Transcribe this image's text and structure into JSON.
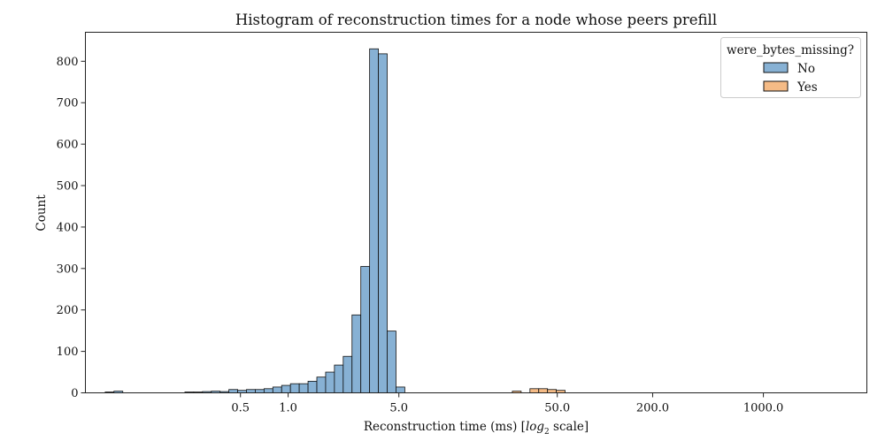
{
  "chart_data": {
    "type": "bar",
    "title": "Histogram of reconstruction times for a node whose peers prefill",
    "xlabel_prefix": "Reconstruction time (ms) [",
    "xlabel_log": "log",
    "xlabel_sub": "2",
    "xlabel_suffix": " scale]",
    "ylabel": "Count",
    "x_scale": "log2",
    "xlim": [
      0.0525,
      4500
    ],
    "ylim": [
      0,
      870
    ],
    "x_ticks": [
      0.5,
      1.0,
      5.0,
      50.0,
      200.0,
      1000.0
    ],
    "x_tick_labels": [
      "0.5",
      "1.0",
      "5.0",
      "50.0",
      "200.0",
      "1000.0"
    ],
    "y_ticks": [
      0,
      100,
      200,
      300,
      400,
      500,
      600,
      700,
      800
    ],
    "grid": false,
    "legend": {
      "title": "were_bytes_missing?",
      "placement": "top-right",
      "entries": [
        {
          "label": "No",
          "color": "#87b1d4"
        },
        {
          "label": "Yes",
          "color": "#f5bb86"
        }
      ]
    },
    "series": [
      {
        "name": "No",
        "color": "#87b1d4",
        "bins": [
          {
            "x0": 0.07,
            "x1": 0.0795,
            "count": 2
          },
          {
            "x0": 0.0795,
            "x1": 0.0904,
            "count": 4
          },
          {
            "x0": 0.223,
            "x1": 0.2534,
            "count": 2
          },
          {
            "x0": 0.2534,
            "x1": 0.288,
            "count": 2
          },
          {
            "x0": 0.288,
            "x1": 0.3273,
            "count": 3
          },
          {
            "x0": 0.3273,
            "x1": 0.3719,
            "count": 4
          },
          {
            "x0": 0.3719,
            "x1": 0.4226,
            "count": 3
          },
          {
            "x0": 0.4226,
            "x1": 0.4802,
            "count": 8
          },
          {
            "x0": 0.4802,
            "x1": 0.5457,
            "count": 6
          },
          {
            "x0": 0.5457,
            "x1": 0.6201,
            "count": 8
          },
          {
            "x0": 0.6201,
            "x1": 0.7047,
            "count": 8
          },
          {
            "x0": 0.7047,
            "x1": 0.8008,
            "count": 10
          },
          {
            "x0": 0.8008,
            "x1": 0.91,
            "count": 14
          },
          {
            "x0": 0.91,
            "x1": 1.0341,
            "count": 18
          },
          {
            "x0": 1.0341,
            "x1": 1.1751,
            "count": 22
          },
          {
            "x0": 1.1751,
            "x1": 1.3354,
            "count": 22
          },
          {
            "x0": 1.3354,
            "x1": 1.5175,
            "count": 28
          },
          {
            "x0": 1.5175,
            "x1": 1.7244,
            "count": 38
          },
          {
            "x0": 1.7244,
            "x1": 1.9596,
            "count": 50
          },
          {
            "x0": 1.9596,
            "x1": 2.2268,
            "count": 67
          },
          {
            "x0": 2.2268,
            "x1": 2.5305,
            "count": 88
          },
          {
            "x0": 2.5305,
            "x1": 2.8756,
            "count": 188
          },
          {
            "x0": 2.8756,
            "x1": 3.2677,
            "count": 305
          },
          {
            "x0": 3.2677,
            "x1": 3.7134,
            "count": 830
          },
          {
            "x0": 3.7134,
            "x1": 4.2198,
            "count": 818
          },
          {
            "x0": 4.2198,
            "x1": 4.7952,
            "count": 149
          },
          {
            "x0": 4.7952,
            "x1": 5.4492,
            "count": 14
          }
        ]
      },
      {
        "name": "Yes",
        "color": "#f5bb86",
        "bins": [
          {
            "x0": 26.02,
            "x1": 29.57,
            "count": 4
          },
          {
            "x0": 33.6,
            "x1": 38.18,
            "count": 10
          },
          {
            "x0": 38.18,
            "x1": 43.39,
            "count": 10
          },
          {
            "x0": 43.39,
            "x1": 49.3,
            "count": 8
          },
          {
            "x0": 49.3,
            "x1": 56.03,
            "count": 6
          }
        ]
      }
    ]
  }
}
